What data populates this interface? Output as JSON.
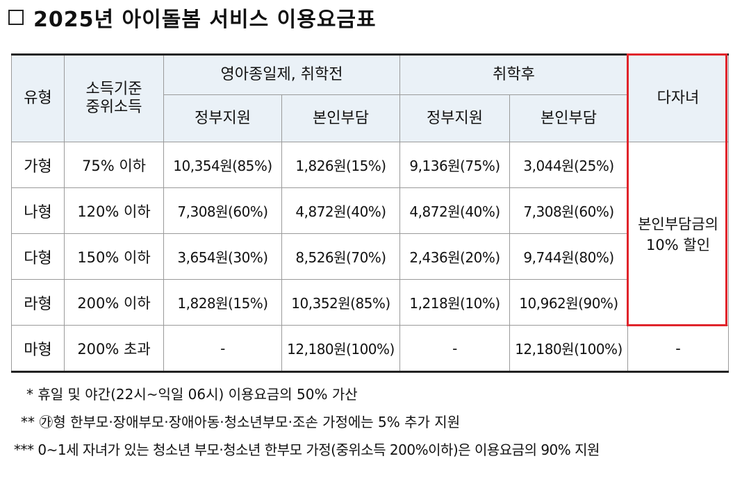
{
  "title": "2025년 아이돌봄 서비스 이용요금표",
  "table": {
    "headers": {
      "type": "유형",
      "income_line1": "소득기준",
      "income_line2": "중위소득",
      "group_preschool": "영아종일제, 취학전",
      "group_school": "취학후",
      "multi_child": "다자녀",
      "gov_support": "정부지원",
      "self_pay": "본인부담"
    },
    "rows": [
      {
        "type": "가형",
        "income": "75% 이하",
        "pre_gov": "10,354원(85%)",
        "pre_self": "1,826원(15%)",
        "post_gov": "9,136원(75%)",
        "post_self": "3,044원(25%)"
      },
      {
        "type": "나형",
        "income": "120% 이하",
        "pre_gov": "7,308원(60%)",
        "pre_self": "4,872원(40%)",
        "post_gov": "4,872원(40%)",
        "post_self": "7,308원(60%)"
      },
      {
        "type": "다형",
        "income": "150% 이하",
        "pre_gov": "3,654원(30%)",
        "pre_self": "8,526원(70%)",
        "post_gov": "2,436원(20%)",
        "post_self": "9,744원(80%)"
      },
      {
        "type": "라형",
        "income": "200% 이하",
        "pre_gov": "1,828원(15%)",
        "pre_self": "10,352원(85%)",
        "post_gov": "1,218원(10%)",
        "post_self": "10,962원(90%)"
      },
      {
        "type": "마형",
        "income": "200% 초과",
        "pre_gov": "-",
        "pre_self": "12,180원(100%)",
        "post_gov": "-",
        "post_self": "12,180원(100%)",
        "multi": "-"
      }
    ],
    "multi_discount_line1": "본인부담금의",
    "multi_discount_line2": "10% 할인",
    "highlight_color": "#e0242b",
    "header_bg": "#eaf1f7"
  },
  "notes": [
    "* 휴일 및 야간(22시~익일 06시) 이용요금의 50% 가산",
    "** ㉮형 한부모·장애부모·장애아동·청소년부모·조손 가정에는 5% 추가 지원",
    "*** 0~1세 자녀가 있는 청소년 부모·청소년 한부모 가정(중위소득 200%이하)은 이용요금의 90% 지원"
  ]
}
